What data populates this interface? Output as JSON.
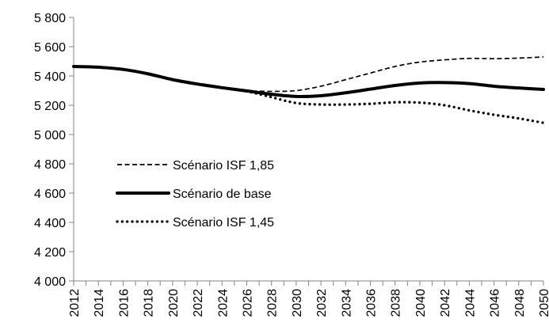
{
  "chart_data": {
    "type": "line",
    "title": "",
    "xlabel": "",
    "ylabel": "",
    "ylim": [
      4000,
      5800
    ],
    "y_ticks": [
      4000,
      4200,
      4400,
      4600,
      4800,
      5000,
      5200,
      5400,
      5600,
      5800
    ],
    "y_tick_labels": [
      "4 000",
      "4 200",
      "4 400",
      "4 600",
      "4 800",
      "5 000",
      "5 200",
      "5 400",
      "5 600",
      "5 800"
    ],
    "x_range": [
      2012,
      2050
    ],
    "x_tick_labels": [
      "2012",
      "2014",
      "2016",
      "2018",
      "2020",
      "2022",
      "2024",
      "2026",
      "2028",
      "2030",
      "2032",
      "2034",
      "2036",
      "2038",
      "2040",
      "2042",
      "2044",
      "2046",
      "2048",
      "2050"
    ],
    "grid": false,
    "legend_position": "left",
    "series": [
      {
        "name": "Scénario ISF 1,85",
        "style": "dashed",
        "color": "#000000",
        "x": [
          2012,
          2014,
          2016,
          2018,
          2020,
          2022,
          2024,
          2026,
          2028,
          2030,
          2032,
          2034,
          2036,
          2038,
          2040,
          2042,
          2044,
          2046,
          2048,
          2050
        ],
        "y": [
          5465,
          5460,
          5445,
          5415,
          5375,
          5345,
          5320,
          5300,
          5295,
          5300,
          5330,
          5375,
          5420,
          5465,
          5495,
          5510,
          5520,
          5518,
          5522,
          5530
        ]
      },
      {
        "name": "Scénario de base",
        "style": "solid",
        "color": "#000000",
        "x": [
          2012,
          2014,
          2016,
          2018,
          2020,
          2022,
          2024,
          2026,
          2028,
          2030,
          2032,
          2034,
          2036,
          2038,
          2040,
          2042,
          2044,
          2046,
          2048,
          2050
        ],
        "y": [
          5465,
          5460,
          5445,
          5415,
          5375,
          5345,
          5320,
          5298,
          5275,
          5260,
          5265,
          5285,
          5310,
          5335,
          5352,
          5355,
          5348,
          5330,
          5318,
          5308
        ]
      },
      {
        "name": "Scénario ISF 1,45",
        "style": "dotted",
        "color": "#000000",
        "x": [
          2012,
          2014,
          2016,
          2018,
          2020,
          2022,
          2024,
          2026,
          2028,
          2030,
          2032,
          2034,
          2036,
          2038,
          2040,
          2042,
          2044,
          2046,
          2048,
          2050
        ],
        "y": [
          5465,
          5460,
          5445,
          5415,
          5375,
          5345,
          5320,
          5295,
          5255,
          5215,
          5205,
          5205,
          5210,
          5220,
          5218,
          5200,
          5165,
          5135,
          5110,
          5080
        ]
      }
    ]
  }
}
